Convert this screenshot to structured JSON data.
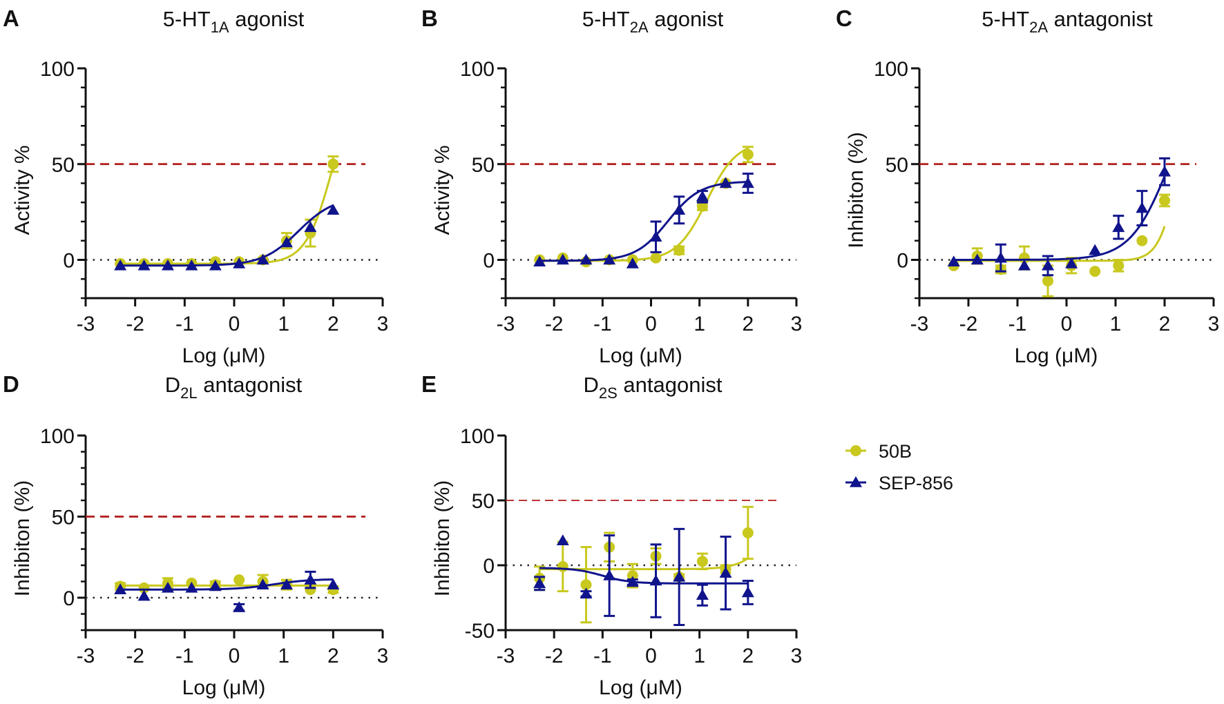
{
  "figure": {
    "series_styles": [
      {
        "name": "50B",
        "color": "#c8c81e",
        "marker": "circle"
      },
      {
        "name": "SEP-856",
        "color": "#10148c",
        "marker": "triangle"
      }
    ],
    "threshold_color": "#b01818",
    "zero_line_color": "#222222"
  },
  "legend": {
    "placement": "right of bottom row",
    "items": [
      {
        "label": "50B",
        "color": "#c8c81e",
        "marker": "circle"
      },
      {
        "label": "SEP-856",
        "color": "#10148c",
        "marker": "triangle"
      }
    ]
  },
  "chart_data": [
    {
      "id": "A",
      "letter": "A",
      "type": "line",
      "title": "5-HT1A agonist",
      "title_main": "5-HT",
      "title_sub": "1A",
      "title_rest": " agonist",
      "xlabel": "Log (μM)",
      "ylabel": "Activity %",
      "xlim": [
        -3,
        3
      ],
      "ylim": [
        -20,
        100
      ],
      "xticks": [
        -3,
        -2,
        -1,
        0,
        1,
        2,
        3
      ],
      "yticks": [
        0,
        50,
        100
      ],
      "minor_ticks": true,
      "threshold": 50,
      "x": [
        -2.3,
        -1.82,
        -1.34,
        -0.86,
        -0.38,
        0.1,
        0.58,
        1.06,
        1.54,
        2.0
      ],
      "series": [
        {
          "name": "50B",
          "values": [
            -2,
            -2,
            -2,
            -2,
            -1,
            -1,
            0,
            10,
            14,
            50
          ],
          "errors": [
            1,
            1,
            1,
            1,
            1,
            1,
            1,
            4,
            7,
            4
          ],
          "fit": {
            "bottom": -2,
            "top": 100,
            "logec50": 2.0,
            "hill": 1.6
          }
        },
        {
          "name": "SEP-856",
          "values": [
            -3,
            -3,
            -3,
            -3,
            -3,
            -2,
            0,
            9,
            17,
            26
          ],
          "errors": [
            1,
            1,
            1,
            1,
            1,
            1,
            1,
            1,
            1,
            1
          ],
          "fit": {
            "bottom": -3,
            "top": 33,
            "logec50": 1.3,
            "hill": 1.2
          }
        }
      ]
    },
    {
      "id": "B",
      "letter": "B",
      "type": "line",
      "title": "5-HT2A agonist",
      "title_main": "5-HT",
      "title_sub": "2A",
      "title_rest": " agonist",
      "xlabel": "Log (μM)",
      "ylabel": "Activity %",
      "xlim": [
        -3,
        3
      ],
      "ylim": [
        -20,
        100
      ],
      "xticks": [
        -3,
        -2,
        -1,
        0,
        1,
        2,
        3
      ],
      "yticks": [
        0,
        50,
        100
      ],
      "minor_ticks": true,
      "threshold": 50,
      "x": [
        -2.3,
        -1.82,
        -1.34,
        -0.86,
        -0.38,
        0.1,
        0.58,
        1.06,
        1.54,
        2.0
      ],
      "series": [
        {
          "name": "50B",
          "values": [
            0,
            1,
            -1,
            0,
            0,
            1,
            5,
            28,
            40,
            55
          ],
          "errors": [
            1,
            1,
            1,
            1,
            1,
            1,
            2,
            2,
            1,
            4
          ],
          "fit": {
            "bottom": -0.5,
            "top": 62,
            "logec50": 1.15,
            "hill": 1.4
          }
        },
        {
          "name": "SEP-856",
          "values": [
            -1,
            0,
            0,
            0,
            -2,
            12,
            26,
            33,
            40,
            40
          ],
          "errors": [
            1,
            1,
            1,
            1,
            1,
            8,
            7,
            3,
            1,
            5
          ],
          "fit": {
            "bottom": -0.5,
            "top": 41,
            "logec50": 0.35,
            "hill": 1.3
          }
        }
      ]
    },
    {
      "id": "C",
      "letter": "C",
      "type": "line",
      "title": "5-HT2A antagonist",
      "title_main": "5-HT",
      "title_sub": "2A",
      "title_rest": " antagonist",
      "xlabel": "Log (μM)",
      "ylabel": "Inhibiton (%)",
      "xlim": [
        -3,
        3
      ],
      "ylim": [
        -20,
        100
      ],
      "xticks": [
        -3,
        -2,
        -1,
        0,
        1,
        2,
        3
      ],
      "yticks": [
        0,
        50,
        100
      ],
      "minor_ticks": true,
      "threshold": 50,
      "x": [
        -2.3,
        -1.82,
        -1.34,
        -0.86,
        -0.38,
        0.1,
        0.58,
        1.06,
        1.54,
        2.0
      ],
      "series": [
        {
          "name": "50B",
          "values": [
            -3,
            2,
            -5,
            1,
            -11,
            -3,
            -6,
            -3,
            10,
            31
          ],
          "errors": [
            1,
            4,
            2,
            6,
            8,
            4,
            1,
            3,
            1,
            3
          ],
          "fit": {
            "bottom": -0.5,
            "top": 100,
            "logec50": 2.3,
            "hill": 2.2
          }
        },
        {
          "name": "SEP-856",
          "values": [
            -1,
            0,
            1,
            -3,
            -3,
            -2,
            5,
            17,
            27,
            46
          ],
          "errors": [
            1,
            1,
            7,
            1,
            5,
            1,
            1,
            6,
            9,
            7
          ],
          "fit": {
            "bottom": 0,
            "top": 100,
            "logec50": 2.1,
            "hill": 1.1
          }
        }
      ]
    },
    {
      "id": "D",
      "letter": "D",
      "type": "line",
      "title": "D2L antagonist",
      "title_main": "D",
      "title_sub": "2L",
      "title_rest": " antagonist",
      "xlabel": "Log (μM)",
      "ylabel": "Inhibiton (%)",
      "xlim": [
        -3,
        3
      ],
      "ylim": [
        -20,
        100
      ],
      "xticks": [
        -3,
        -2,
        -1,
        0,
        1,
        2,
        3
      ],
      "yticks": [
        0,
        50,
        100
      ],
      "minor_ticks": true,
      "threshold": 50,
      "x": [
        -2.3,
        -1.82,
        -1.34,
        -0.86,
        -0.38,
        0.1,
        0.58,
        1.06,
        1.54,
        2.0
      ],
      "series": [
        {
          "name": "50B",
          "values": [
            7,
            6,
            9,
            9,
            8,
            11,
            10,
            8,
            5,
            5
          ],
          "errors": [
            2,
            1,
            3,
            1,
            2,
            1,
            4,
            3,
            1,
            2
          ],
          "fit": {
            "bottom": 7.5,
            "top": 7.5,
            "logec50": 0,
            "hill": 1
          }
        },
        {
          "name": "SEP-856",
          "values": [
            5,
            1,
            6,
            6,
            7,
            -6,
            8,
            8,
            11,
            8
          ],
          "errors": [
            1,
            1,
            1,
            1,
            1,
            2,
            1,
            1,
            5,
            1
          ],
          "fit": {
            "bottom": 5,
            "top": 11.5,
            "logec50": 0.8,
            "hill": 1.2
          }
        }
      ]
    },
    {
      "id": "E",
      "letter": "E",
      "type": "line",
      "title": "D2S antagonist",
      "title_main": "D",
      "title_sub": "2S",
      "title_rest": " antagonist",
      "xlabel": "Log (μM)",
      "ylabel": "Inhibiton (%)",
      "xlim": [
        -3,
        3
      ],
      "ylim": [
        -50,
        100
      ],
      "xticks": [
        -3,
        -2,
        -1,
        0,
        1,
        2,
        3
      ],
      "yticks": [
        -50,
        0,
        50,
        100
      ],
      "minor_ticks": false,
      "threshold": 50,
      "x": [
        -2.3,
        -1.82,
        -1.34,
        -0.86,
        -0.38,
        0.1,
        0.58,
        1.06,
        1.54,
        2.0
      ],
      "series": [
        {
          "name": "50B",
          "values": [
            -10,
            -1,
            -15,
            14,
            -8,
            7,
            -9,
            3,
            -3,
            25
          ],
          "errors": [
            9,
            19,
            29,
            11,
            9,
            6,
            2,
            6,
            3,
            20
          ],
          "fit": {
            "bottom": -3,
            "top": 100,
            "logec50": 2.7,
            "hill": 1.5
          }
        },
        {
          "name": "SEP-856",
          "values": [
            -14,
            19,
            -22,
            -8,
            -13,
            -12,
            -9,
            -23,
            -6,
            -21
          ],
          "errors": [
            5,
            1,
            2,
            31,
            2,
            28,
            37,
            8,
            28,
            9
          ],
          "fit": {
            "bottom": -2,
            "top": -14,
            "logec50": -1.0,
            "hill": 1.5
          }
        }
      ]
    }
  ]
}
